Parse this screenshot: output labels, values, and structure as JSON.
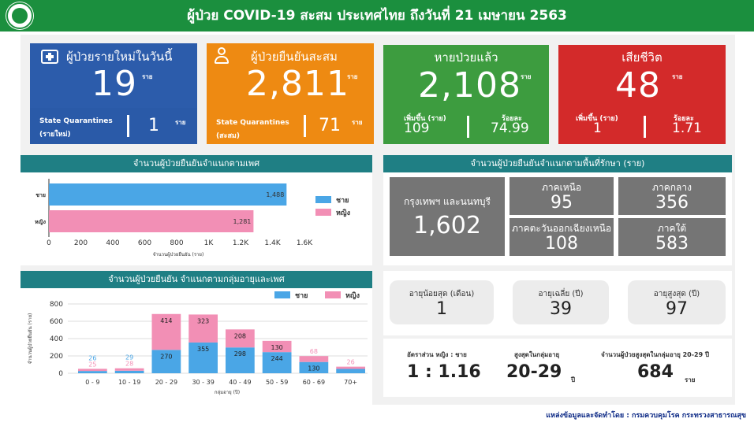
{
  "header": {
    "title": "ผู้ป่วย COVID-19 สะสม  ประเทศไทย ถึงวันที่ 21 เมษายน 2563"
  },
  "colors": {
    "header_green": "#1b8f3e",
    "new_blue": "#2c5cab",
    "cum_orange": "#ee8a12",
    "recovered_green": "#3d9c3f",
    "death_red": "#d32a2a",
    "panel_teal": "#1f7f84",
    "male": "#4aa6e6",
    "female": "#f28fb5",
    "region_grey": "#757575"
  },
  "cards": {
    "new": {
      "title": "ผู้ป่วยรายใหม่ในวันนี้",
      "value": "19",
      "unit": "ราย",
      "sub_label_1": "State Quarantines",
      "sub_label_2": "(รายใหม่)",
      "sub_value": "1",
      "sub_unit": "ราย",
      "icon": "medical-kit-icon"
    },
    "cumulative": {
      "title": "ผู้ป่วยยืนยันสะสม",
      "value": "2,811",
      "unit": "ราย",
      "sub_label_1": "State Quarantines",
      "sub_label_2": "(สะสม)",
      "sub_value": "71",
      "sub_unit": "ราย",
      "icon": "person-icon"
    },
    "recovered": {
      "title": "หายป่วยแล้ว",
      "value": "2,108",
      "unit": "ราย",
      "inc_label": "เพิ่มขึ้น (ราย)",
      "inc_value": "109",
      "pct_label": "ร้อยละ",
      "pct_value": "74.99"
    },
    "deaths": {
      "title": "เสียชีวิต",
      "value": "48",
      "unit": "ราย",
      "inc_label": "เพิ่มขึ้น (ราย)",
      "inc_value": "1",
      "pct_label": "ร้อยละ",
      "pct_value": "1.71"
    }
  },
  "gender_panel": {
    "title": "จำนวนผู้ป่วยยืนยันจำแนกตามเพศ",
    "legend_male": "ชาย",
    "legend_female": "หญิง"
  },
  "region_panel": {
    "title": "จำนวนผู้ป่วยยืนยันจำแนกตามพื้นที่รักษา (ราย)",
    "regions": [
      {
        "name": "กรุงเทพฯ และนนทบุรี",
        "value": "1,602"
      },
      {
        "name": "ภาคเหนือ",
        "value": "95"
      },
      {
        "name": "ภาคกลาง",
        "value": "356"
      },
      {
        "name": "ภาคตะวันออกเฉียงเหนือ",
        "value": "108"
      },
      {
        "name": "ภาคใต้",
        "value": "583"
      }
    ]
  },
  "age_panel": {
    "title": "จำนวนผู้ป่วยยืนยัน จำแนกตามกลุ่มอายุและเพศ",
    "legend_male": "ชาย",
    "legend_female": "หญิง"
  },
  "age_stats": {
    "youngest_label": "อายุน้อยสุด (เดือน)",
    "youngest_value": "1",
    "mean_label": "อายุเฉลี่ย (ปี)",
    "mean_value": "39",
    "oldest_label": "อายุสูงสุด (ปี)",
    "oldest_value": "97"
  },
  "ratio_stats": {
    "ratio_label": "อัตราส่วน หญิง : ชาย",
    "ratio_value": "1 : 1.16",
    "peak_label": "สูงสุดในกลุ่มอายุ",
    "peak_value": "20-29",
    "peak_unit": "ปี",
    "peak_count_label": "จำนวนผู้ป่วยสูงสุดในกลุ่มอายุ 20-29 ปี",
    "peak_count_value": "684",
    "peak_count_unit": "ราย"
  },
  "footer": {
    "source": "แหล่งข้อมูลและจัดทำโดย : กรมควบคุมโรค กระทรวงสาธารณสุข"
  },
  "chart_data": [
    {
      "type": "bar",
      "orientation": "horizontal",
      "categories": [
        "ชาย",
        "หญิง"
      ],
      "values": [
        1488,
        1281
      ],
      "value_labels": [
        "1,488",
        "1,281"
      ],
      "xlabel": "จำนวนผู้ป่วยยืนยัน (ราย)",
      "xlim": [
        0,
        1600
      ],
      "ticks": [
        "0",
        "200",
        "400",
        "600",
        "800",
        "1K",
        "1.2K",
        "1.4K",
        "1.6K"
      ],
      "legend": [
        "ชาย",
        "หญิง"
      ],
      "legend_position": "right",
      "grid": false
    },
    {
      "type": "bar",
      "stacked": true,
      "categories": [
        "0 - 9",
        "10 - 19",
        "20 - 29",
        "30 - 39",
        "40 - 49",
        "50 - 59",
        "60 - 69",
        "70+"
      ],
      "series": [
        {
          "name": "ชาย",
          "values": [
            26,
            29,
            270,
            355,
            298,
            244,
            130,
            50
          ]
        },
        {
          "name": "หญิง",
          "values": [
            25,
            28,
            414,
            323,
            208,
            130,
            68,
            26
          ]
        }
      ],
      "male_labels": [
        "",
        "",
        "270",
        "355",
        "298",
        "244",
        "130",
        ""
      ],
      "female_labels": [
        "25",
        "28",
        "414",
        "323",
        "208",
        "130",
        "68",
        "26"
      ],
      "top_labels": [
        "26",
        "29",
        "",
        "",
        "",
        "",
        "",
        ""
      ],
      "xlabel": "กลุ่มอายุ (ปี)",
      "ylabel": "จำนวนผู้ป่วยยืนยัน (ราย)",
      "ylim": [
        0,
        800
      ],
      "yticks": [
        "0",
        "200",
        "400",
        "600",
        "800"
      ],
      "legend_position": "top-right",
      "grid": true
    }
  ]
}
